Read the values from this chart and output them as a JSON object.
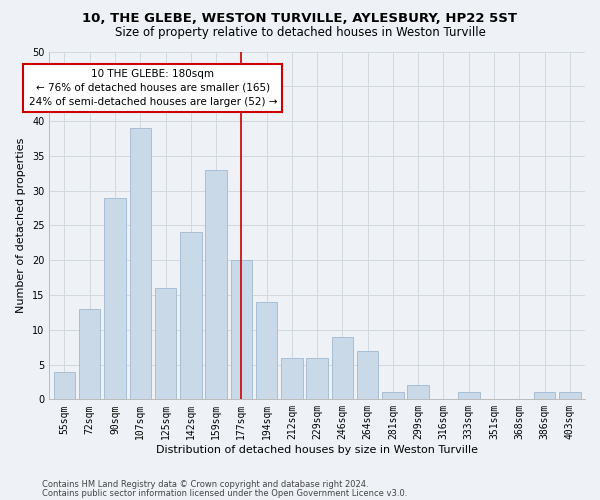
{
  "title": "10, THE GLEBE, WESTON TURVILLE, AYLESBURY, HP22 5ST",
  "subtitle": "Size of property relative to detached houses in Weston Turville",
  "xlabel": "Distribution of detached houses by size in Weston Turville",
  "ylabel": "Number of detached properties",
  "footnote1": "Contains HM Land Registry data © Crown copyright and database right 2024.",
  "footnote2": "Contains public sector information licensed under the Open Government Licence v3.0.",
  "bar_labels": [
    "55sqm",
    "72sqm",
    "90sqm",
    "107sqm",
    "125sqm",
    "142sqm",
    "159sqm",
    "177sqm",
    "194sqm",
    "212sqm",
    "229sqm",
    "246sqm",
    "264sqm",
    "281sqm",
    "299sqm",
    "316sqm",
    "333sqm",
    "351sqm",
    "368sqm",
    "386sqm",
    "403sqm"
  ],
  "bar_values": [
    4,
    13,
    29,
    39,
    16,
    24,
    33,
    20,
    14,
    6,
    6,
    9,
    7,
    1,
    2,
    0,
    1,
    0,
    0,
    1,
    1
  ],
  "bar_color": "#c9d9e8",
  "bar_edge_color": "#a0b8d0",
  "grid_color": "#d0d8e0",
  "background_color": "#eef2f7",
  "annotation_box_text": "10 THE GLEBE: 180sqm\n← 76% of detached houses are smaller (165)\n24% of semi-detached houses are larger (52) →",
  "annotation_box_color": "#ffffff",
  "annotation_box_edge_color": "#cc0000",
  "vline_x_index": 7,
  "vline_color": "#cc0000",
  "ylim": [
    0,
    50
  ],
  "yticks": [
    0,
    5,
    10,
    15,
    20,
    25,
    30,
    35,
    40,
    45,
    50
  ],
  "title_fontsize": 9.5,
  "subtitle_fontsize": 8.5,
  "axis_label_fontsize": 8,
  "tick_fontsize": 7,
  "annotation_fontsize": 7.5,
  "footnote_fontsize": 6
}
